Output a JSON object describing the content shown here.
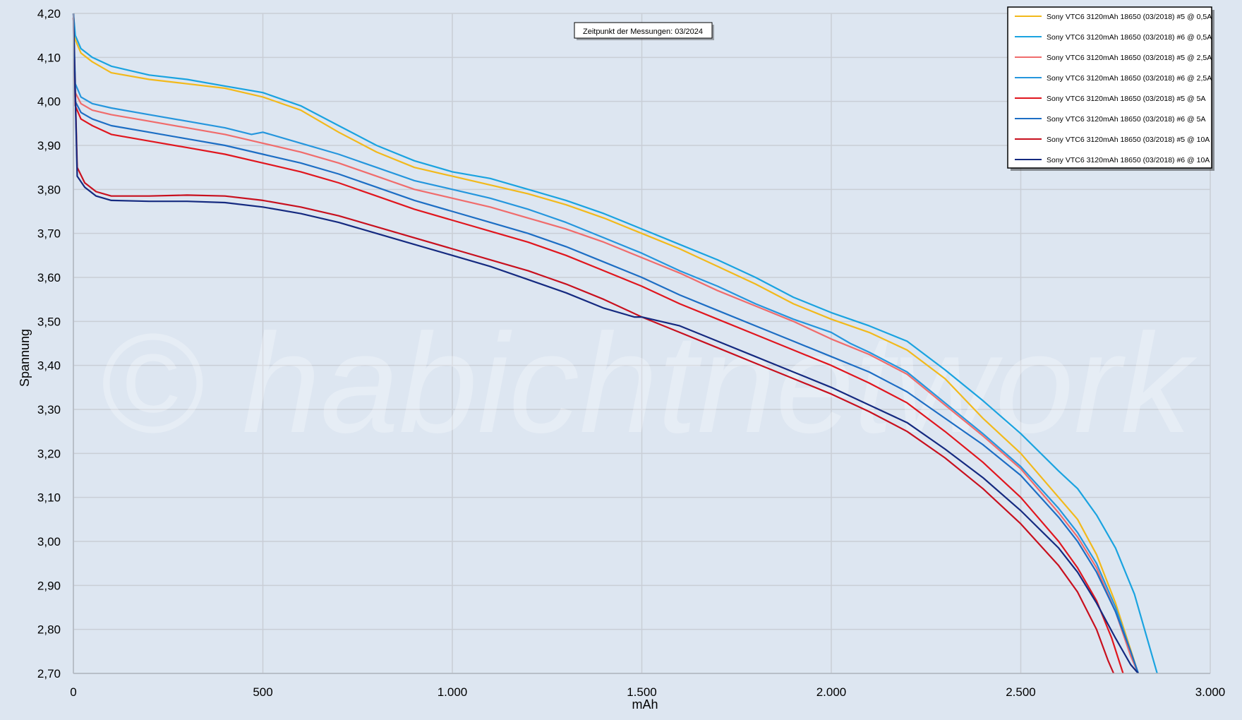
{
  "watermark": "© habichtnetwork",
  "note": "Zeitpunkt der Messungen: 03/2024",
  "chart_data": {
    "type": "line",
    "title": "",
    "xlabel": "mAh",
    "ylabel": "Spannung",
    "xlim": [
      0,
      3000
    ],
    "ylim": [
      2.7,
      4.2
    ],
    "grid": true,
    "legend_position": "top-right",
    "x_ticks": [
      0,
      500,
      1000,
      1500,
      2000,
      2500,
      3000
    ],
    "x_tick_labels": [
      "0",
      "500",
      "1.000",
      "1.500",
      "2.000",
      "2.500",
      "3.000"
    ],
    "y_ticks": [
      2.7,
      2.8,
      2.9,
      3.0,
      3.1,
      3.2,
      3.3,
      3.4,
      3.5,
      3.6,
      3.7,
      3.8,
      3.9,
      4.0,
      4.1,
      4.2
    ],
    "y_tick_labels": [
      "2,70",
      "2,80",
      "2,90",
      "3,00",
      "3,10",
      "3,20",
      "3,30",
      "3,40",
      "3,50",
      "3,60",
      "3,70",
      "3,80",
      "3,90",
      "4,00",
      "4,10",
      "4,20"
    ],
    "series": [
      {
        "name": "Sony VTC6 3120mAh 18650 (03/2018) #5 @ 0,5A",
        "color": "#f2b91b",
        "points": [
          [
            0,
            4.2
          ],
          [
            5,
            4.14
          ],
          [
            20,
            4.11
          ],
          [
            50,
            4.09
          ],
          [
            100,
            4.065
          ],
          [
            200,
            4.05
          ],
          [
            300,
            4.04
          ],
          [
            400,
            4.03
          ],
          [
            500,
            4.01
          ],
          [
            600,
            3.98
          ],
          [
            700,
            3.93
          ],
          [
            800,
            3.885
          ],
          [
            900,
            3.85
          ],
          [
            1000,
            3.83
          ],
          [
            1100,
            3.81
          ],
          [
            1200,
            3.79
          ],
          [
            1300,
            3.765
          ],
          [
            1400,
            3.735
          ],
          [
            1500,
            3.7
          ],
          [
            1600,
            3.665
          ],
          [
            1700,
            3.625
          ],
          [
            1800,
            3.585
          ],
          [
            1900,
            3.54
          ],
          [
            2000,
            3.505
          ],
          [
            2100,
            3.475
          ],
          [
            2200,
            3.435
          ],
          [
            2300,
            3.37
          ],
          [
            2400,
            3.28
          ],
          [
            2500,
            3.2
          ],
          [
            2600,
            3.1
          ],
          [
            2650,
            3.05
          ],
          [
            2700,
            2.97
          ],
          [
            2750,
            2.86
          ],
          [
            2780,
            2.78
          ],
          [
            2810,
            2.7
          ]
        ]
      },
      {
        "name": "Sony VTC6 3120mAh 18650 (03/2018) #6 @ 0,5A",
        "color": "#1aa3e0",
        "points": [
          [
            0,
            4.2
          ],
          [
            5,
            4.15
          ],
          [
            20,
            4.12
          ],
          [
            50,
            4.1
          ],
          [
            100,
            4.08
          ],
          [
            200,
            4.06
          ],
          [
            300,
            4.05
          ],
          [
            400,
            4.035
          ],
          [
            500,
            4.02
          ],
          [
            600,
            3.99
          ],
          [
            700,
            3.945
          ],
          [
            800,
            3.9
          ],
          [
            900,
            3.865
          ],
          [
            1000,
            3.84
          ],
          [
            1100,
            3.825
          ],
          [
            1200,
            3.8
          ],
          [
            1300,
            3.775
          ],
          [
            1400,
            3.745
          ],
          [
            1500,
            3.71
          ],
          [
            1600,
            3.675
          ],
          [
            1700,
            3.64
          ],
          [
            1800,
            3.6
          ],
          [
            1900,
            3.555
          ],
          [
            2000,
            3.52
          ],
          [
            2100,
            3.49
          ],
          [
            2200,
            3.455
          ],
          [
            2300,
            3.39
          ],
          [
            2400,
            3.32
          ],
          [
            2500,
            3.245
          ],
          [
            2600,
            3.16
          ],
          [
            2650,
            3.12
          ],
          [
            2700,
            3.06
          ],
          [
            2750,
            2.985
          ],
          [
            2800,
            2.88
          ],
          [
            2830,
            2.79
          ],
          [
            2860,
            2.7
          ]
        ]
      },
      {
        "name": "Sony VTC6 3120mAh 18650 (03/2018) #5 @ 2,5A",
        "color": "#f06c6c",
        "points": [
          [
            0,
            4.19
          ],
          [
            5,
            4.02
          ],
          [
            20,
            3.995
          ],
          [
            50,
            3.98
          ],
          [
            100,
            3.97
          ],
          [
            200,
            3.955
          ],
          [
            300,
            3.94
          ],
          [
            400,
            3.925
          ],
          [
            500,
            3.905
          ],
          [
            600,
            3.885
          ],
          [
            700,
            3.86
          ],
          [
            800,
            3.83
          ],
          [
            900,
            3.8
          ],
          [
            1000,
            3.78
          ],
          [
            1100,
            3.76
          ],
          [
            1200,
            3.735
          ],
          [
            1300,
            3.71
          ],
          [
            1400,
            3.68
          ],
          [
            1500,
            3.645
          ],
          [
            1600,
            3.61
          ],
          [
            1700,
            3.57
          ],
          [
            1800,
            3.535
          ],
          [
            1900,
            3.5
          ],
          [
            2000,
            3.46
          ],
          [
            2100,
            3.425
          ],
          [
            2200,
            3.38
          ],
          [
            2300,
            3.31
          ],
          [
            2400,
            3.24
          ],
          [
            2500,
            3.165
          ],
          [
            2600,
            3.065
          ],
          [
            2650,
            3.01
          ],
          [
            2700,
            2.94
          ],
          [
            2750,
            2.84
          ],
          [
            2790,
            2.74
          ],
          [
            2810,
            2.7
          ]
        ]
      },
      {
        "name": "Sony VTC6 3120mAh 18650 (03/2018) #6 @ 2,5A",
        "color": "#2596dd",
        "points": [
          [
            0,
            4.2
          ],
          [
            5,
            4.04
          ],
          [
            20,
            4.01
          ],
          [
            50,
            3.995
          ],
          [
            100,
            3.985
          ],
          [
            200,
            3.97
          ],
          [
            300,
            3.955
          ],
          [
            400,
            3.94
          ],
          [
            470,
            3.925
          ],
          [
            500,
            3.93
          ],
          [
            600,
            3.905
          ],
          [
            700,
            3.88
          ],
          [
            800,
            3.85
          ],
          [
            900,
            3.82
          ],
          [
            1000,
            3.8
          ],
          [
            1100,
            3.78
          ],
          [
            1200,
            3.755
          ],
          [
            1300,
            3.725
          ],
          [
            1400,
            3.69
          ],
          [
            1500,
            3.655
          ],
          [
            1600,
            3.615
          ],
          [
            1700,
            3.58
          ],
          [
            1800,
            3.54
          ],
          [
            1900,
            3.505
          ],
          [
            2000,
            3.475
          ],
          [
            2050,
            3.45
          ],
          [
            2100,
            3.43
          ],
          [
            2200,
            3.385
          ],
          [
            2300,
            3.315
          ],
          [
            2400,
            3.245
          ],
          [
            2500,
            3.17
          ],
          [
            2600,
            3.075
          ],
          [
            2650,
            3.02
          ],
          [
            2700,
            2.95
          ],
          [
            2750,
            2.85
          ],
          [
            2790,
            2.75
          ],
          [
            2810,
            2.7
          ]
        ]
      },
      {
        "name": "Sony VTC6 3120mAh 18650 (03/2018) #5 @ 5A",
        "color": "#e0161e",
        "points": [
          [
            0,
            4.19
          ],
          [
            5,
            3.99
          ],
          [
            20,
            3.96
          ],
          [
            50,
            3.945
          ],
          [
            100,
            3.925
          ],
          [
            200,
            3.91
          ],
          [
            300,
            3.895
          ],
          [
            400,
            3.88
          ],
          [
            500,
            3.86
          ],
          [
            600,
            3.84
          ],
          [
            700,
            3.815
          ],
          [
            800,
            3.785
          ],
          [
            900,
            3.755
          ],
          [
            1000,
            3.73
          ],
          [
            1100,
            3.705
          ],
          [
            1200,
            3.68
          ],
          [
            1300,
            3.65
          ],
          [
            1400,
            3.615
          ],
          [
            1500,
            3.58
          ],
          [
            1600,
            3.54
          ],
          [
            1700,
            3.505
          ],
          [
            1800,
            3.47
          ],
          [
            1900,
            3.435
          ],
          [
            2000,
            3.4
          ],
          [
            2100,
            3.36
          ],
          [
            2200,
            3.315
          ],
          [
            2300,
            3.25
          ],
          [
            2400,
            3.18
          ],
          [
            2500,
            3.1
          ],
          [
            2600,
            3.0
          ],
          [
            2650,
            2.94
          ],
          [
            2700,
            2.865
          ],
          [
            2740,
            2.78
          ],
          [
            2770,
            2.7
          ]
        ]
      },
      {
        "name": "Sony VTC6 3120mAh 18650 (03/2018) #6 @ 5A",
        "color": "#1d6ec4",
        "points": [
          [
            0,
            4.2
          ],
          [
            5,
            4.0
          ],
          [
            20,
            3.975
          ],
          [
            50,
            3.96
          ],
          [
            100,
            3.945
          ],
          [
            200,
            3.93
          ],
          [
            300,
            3.915
          ],
          [
            400,
            3.9
          ],
          [
            500,
            3.88
          ],
          [
            600,
            3.86
          ],
          [
            700,
            3.835
          ],
          [
            800,
            3.805
          ],
          [
            900,
            3.775
          ],
          [
            1000,
            3.75
          ],
          [
            1100,
            3.725
          ],
          [
            1200,
            3.7
          ],
          [
            1300,
            3.67
          ],
          [
            1400,
            3.635
          ],
          [
            1500,
            3.6
          ],
          [
            1600,
            3.56
          ],
          [
            1700,
            3.525
          ],
          [
            1800,
            3.49
          ],
          [
            1900,
            3.455
          ],
          [
            2000,
            3.42
          ],
          [
            2100,
            3.385
          ],
          [
            2200,
            3.34
          ],
          [
            2300,
            3.28
          ],
          [
            2400,
            3.22
          ],
          [
            2500,
            3.15
          ],
          [
            2600,
            3.055
          ],
          [
            2650,
            3.0
          ],
          [
            2700,
            2.93
          ],
          [
            2750,
            2.84
          ],
          [
            2790,
            2.75
          ],
          [
            2810,
            2.7
          ]
        ]
      },
      {
        "name": "Sony VTC6 3120mAh 18650 (03/2018) #5 @ 10A",
        "color": "#c8101e",
        "points": [
          [
            0,
            4.19
          ],
          [
            10,
            3.85
          ],
          [
            30,
            3.815
          ],
          [
            60,
            3.795
          ],
          [
            100,
            3.785
          ],
          [
            200,
            3.785
          ],
          [
            300,
            3.787
          ],
          [
            400,
            3.785
          ],
          [
            500,
            3.775
          ],
          [
            600,
            3.76
          ],
          [
            700,
            3.74
          ],
          [
            800,
            3.715
          ],
          [
            900,
            3.69
          ],
          [
            1000,
            3.665
          ],
          [
            1100,
            3.64
          ],
          [
            1200,
            3.615
          ],
          [
            1300,
            3.585
          ],
          [
            1400,
            3.55
          ],
          [
            1500,
            3.51
          ],
          [
            1600,
            3.475
          ],
          [
            1700,
            3.44
          ],
          [
            1800,
            3.405
          ],
          [
            1900,
            3.37
          ],
          [
            2000,
            3.335
          ],
          [
            2100,
            3.295
          ],
          [
            2200,
            3.25
          ],
          [
            2300,
            3.19
          ],
          [
            2400,
            3.12
          ],
          [
            2500,
            3.04
          ],
          [
            2600,
            2.945
          ],
          [
            2650,
            2.885
          ],
          [
            2700,
            2.8
          ],
          [
            2730,
            2.73
          ],
          [
            2745,
            2.7
          ]
        ]
      },
      {
        "name": "Sony VTC6 3120mAh 18650 (03/2018) #6 @ 10A",
        "color": "#152a80",
        "points": [
          [
            0,
            4.2
          ],
          [
            10,
            3.83
          ],
          [
            30,
            3.805
          ],
          [
            60,
            3.785
          ],
          [
            100,
            3.775
          ],
          [
            200,
            3.773
          ],
          [
            300,
            3.773
          ],
          [
            400,
            3.77
          ],
          [
            500,
            3.76
          ],
          [
            600,
            3.745
          ],
          [
            700,
            3.725
          ],
          [
            800,
            3.7
          ],
          [
            900,
            3.675
          ],
          [
            1000,
            3.65
          ],
          [
            1100,
            3.625
          ],
          [
            1200,
            3.595
          ],
          [
            1300,
            3.565
          ],
          [
            1400,
            3.53
          ],
          [
            1480,
            3.51
          ],
          [
            1500,
            3.51
          ],
          [
            1600,
            3.49
          ],
          [
            1700,
            3.455
          ],
          [
            1800,
            3.42
          ],
          [
            1900,
            3.385
          ],
          [
            2000,
            3.35
          ],
          [
            2100,
            3.31
          ],
          [
            2200,
            3.27
          ],
          [
            2300,
            3.21
          ],
          [
            2400,
            3.145
          ],
          [
            2500,
            3.07
          ],
          [
            2600,
            2.985
          ],
          [
            2650,
            2.93
          ],
          [
            2700,
            2.86
          ],
          [
            2750,
            2.78
          ],
          [
            2790,
            2.72
          ],
          [
            2810,
            2.7
          ]
        ]
      }
    ]
  }
}
